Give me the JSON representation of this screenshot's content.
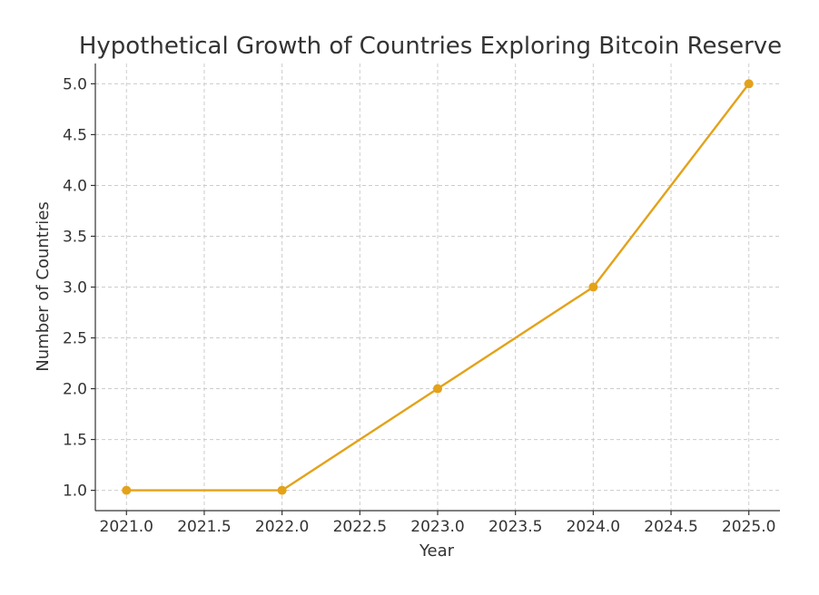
{
  "chart_data": {
    "type": "line",
    "title": "Hypothetical Growth of Countries Exploring Bitcoin Reserve",
    "xlabel": "Year",
    "ylabel": "Number of Countries",
    "x": [
      2021,
      2022,
      2023,
      2024,
      2025
    ],
    "series": [
      {
        "values": [
          1,
          1,
          2,
          3,
          5
        ],
        "color": "#E3A21A"
      }
    ],
    "xlim": [
      2020.8,
      2025.2
    ],
    "ylim": [
      0.8,
      5.2
    ],
    "x_ticks": [
      2021.0,
      2021.5,
      2022.0,
      2022.5,
      2023.0,
      2023.5,
      2024.0,
      2024.5,
      2025.0
    ],
    "y_ticks": [
      1.0,
      1.5,
      2.0,
      2.5,
      3.0,
      3.5,
      4.0,
      4.5,
      5.0
    ],
    "x_tick_labels": [
      "2021.0",
      "2021.5",
      "2022.0",
      "2022.5",
      "2023.0",
      "2023.5",
      "2024.0",
      "2024.5",
      "2025.0"
    ],
    "y_tick_labels": [
      "1.0",
      "1.5",
      "2.0",
      "2.5",
      "3.0",
      "3.5",
      "4.0",
      "4.5",
      "5.0"
    ],
    "grid": true,
    "grid_style": "dashed",
    "marker": "circle"
  }
}
